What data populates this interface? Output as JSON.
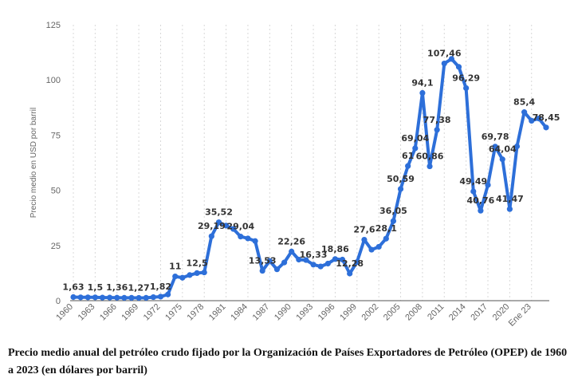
{
  "caption": "Precio medio anual del petróleo crudo fijado por la Organización de Países Exportadores de Petróleo (OPEP) de 1960 a 2023 (en dólares por barril)",
  "chart_data": {
    "type": "line",
    "title": "",
    "xlabel": "",
    "ylabel": "Precio medio en USD por barril",
    "ylim": [
      0,
      125
    ],
    "yticks": [
      0,
      25,
      50,
      75,
      100,
      125
    ],
    "grid": "vertical dashed",
    "legend": "none",
    "colors": {
      "line": "#2d6fd9",
      "grid": "#d8d8d8",
      "axis": "#555555"
    },
    "x_tick_labels": [
      "1960",
      "1963",
      "1966",
      "1969",
      "1972",
      "1975",
      "1978",
      "1981",
      "1984",
      "1987",
      "1990",
      "1993",
      "1996",
      "1999",
      "2002",
      "2005",
      "2008",
      "2011",
      "2014",
      "2017",
      "2020",
      "Ene 23"
    ],
    "x": [
      "1960",
      "1961",
      "1962",
      "1963",
      "1964",
      "1965",
      "1966",
      "1967",
      "1968",
      "1969",
      "1970",
      "1971",
      "1972",
      "1973",
      "1974",
      "1975",
      "1976",
      "1977",
      "1978",
      "1979",
      "1980",
      "1981",
      "1982",
      "1983",
      "1984",
      "1985",
      "1986",
      "1987",
      "1988",
      "1989",
      "1990",
      "1991",
      "1992",
      "1993",
      "1994",
      "1995",
      "1996",
      "1997",
      "1998",
      "1999",
      "2000",
      "2001",
      "2002",
      "2003",
      "2004",
      "2005",
      "2006",
      "2007",
      "2008",
      "2009",
      "2010",
      "2011",
      "2012",
      "2013",
      "2014",
      "2015",
      "2016",
      "2017",
      "2018",
      "2019",
      "2020",
      "2021",
      "2022",
      "Ene 23",
      "Feb 23",
      "Mar 23"
    ],
    "values": [
      1.63,
      1.5,
      1.5,
      1.5,
      1.4,
      1.4,
      1.36,
      1.3,
      1.3,
      1.27,
      1.3,
      1.6,
      1.82,
      2.8,
      11,
      10.4,
      11.6,
      12.5,
      12.8,
      29.19,
      35.52,
      34,
      32.5,
      29.04,
      28.2,
      27,
      13.53,
      18,
      14.2,
      17.3,
      22.26,
      18.6,
      18.4,
      16.33,
      15.5,
      16.8,
      18.86,
      18.6,
      12.28,
      17.5,
      27.6,
      23.1,
      24.4,
      28.1,
      36.05,
      50.59,
      61,
      69.04,
      94.1,
      60.86,
      77.38,
      107.46,
      109.5,
      105.9,
      96.29,
      49.49,
      40.76,
      52.4,
      69.78,
      64.04,
      41.47,
      69.9,
      85.4,
      81.5,
      82.5,
      78.45
    ],
    "data_labels": [
      {
        "index": 0,
        "text": "1,63"
      },
      {
        "index": 3,
        "text": "1,5"
      },
      {
        "index": 6,
        "text": "1,36"
      },
      {
        "index": 9,
        "text": "1,27"
      },
      {
        "index": 12,
        "text": "1,82"
      },
      {
        "index": 14,
        "text": "11"
      },
      {
        "index": 17,
        "text": "12,5"
      },
      {
        "index": 19,
        "text": "29,19"
      },
      {
        "index": 20,
        "text": "35,52"
      },
      {
        "index": 23,
        "text": "29,04"
      },
      {
        "index": 26,
        "text": "13,53"
      },
      {
        "index": 30,
        "text": "22,26"
      },
      {
        "index": 33,
        "text": "16,33"
      },
      {
        "index": 36,
        "text": "18,86"
      },
      {
        "index": 38,
        "text": "12,28"
      },
      {
        "index": 40,
        "text": "27,6"
      },
      {
        "index": 43,
        "text": "28,1"
      },
      {
        "index": 44,
        "text": "36,05"
      },
      {
        "index": 45,
        "text": "50,59"
      },
      {
        "index": 46,
        "text": "61"
      },
      {
        "index": 47,
        "text": "69,04"
      },
      {
        "index": 48,
        "text": "94,1"
      },
      {
        "index": 49,
        "text": "60,86"
      },
      {
        "index": 50,
        "text": "77,38"
      },
      {
        "index": 51,
        "text": "107,46"
      },
      {
        "index": 54,
        "text": "96,29"
      },
      {
        "index": 55,
        "text": "49,49"
      },
      {
        "index": 56,
        "text": "40,76"
      },
      {
        "index": 58,
        "text": "69,78"
      },
      {
        "index": 59,
        "text": "64,04"
      },
      {
        "index": 60,
        "text": "41,47"
      },
      {
        "index": 62,
        "text": "85,4"
      },
      {
        "index": 65,
        "text": "78,45"
      }
    ]
  }
}
